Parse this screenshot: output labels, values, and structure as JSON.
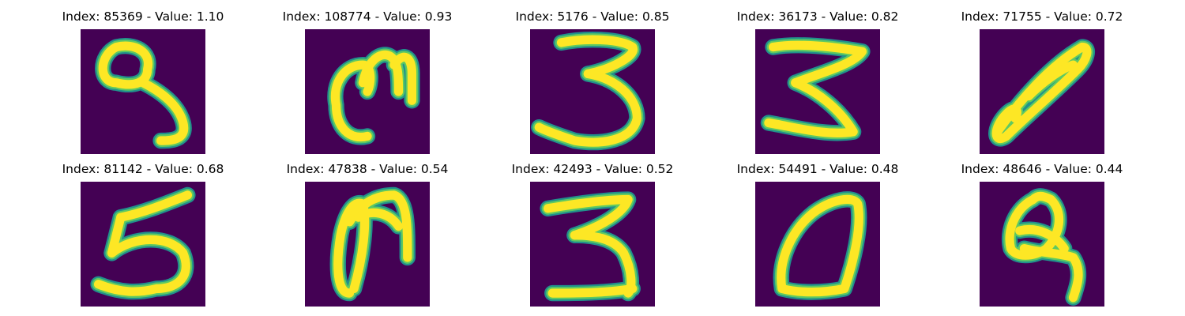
{
  "colors": {
    "background": "#440154",
    "stroke_edge": "#21918c",
    "stroke_mid": "#5ec962",
    "stroke_core": "#fde725"
  },
  "samples": [
    {
      "title": "Index: 85369 - Value: 1.10"
    },
    {
      "title": "Index: 108774 - Value: 0.93"
    },
    {
      "title": "Index: 5176 - Value: 0.85"
    },
    {
      "title": "Index: 36173 - Value: 0.82"
    },
    {
      "title": "Index: 71755 - Value: 0.72"
    },
    {
      "title": "Index: 81142 - Value: 0.68"
    },
    {
      "title": "Index: 47838 - Value: 0.54"
    },
    {
      "title": "Index: 42493 - Value: 0.52"
    },
    {
      "title": "Index: 54491 - Value: 0.48"
    },
    {
      "title": "Index: 48646 - Value: 0.44"
    }
  ]
}
